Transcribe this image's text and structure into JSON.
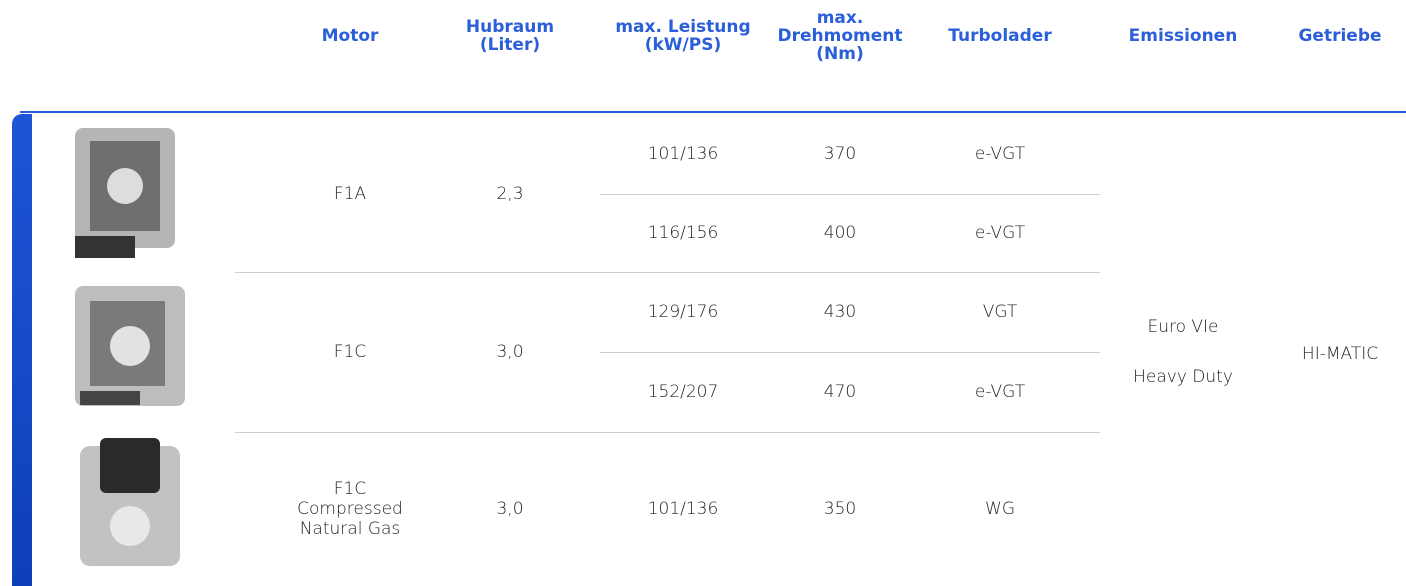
{
  "table": {
    "headers": [
      [
        "Motor"
      ],
      [
        "Hubraum",
        "(Liter)"
      ],
      [
        "max. Leistung",
        "(kW/PS)"
      ],
      [
        "max.",
        "Drehmoment",
        "(Nm)"
      ],
      [
        "Turbolader"
      ],
      [
        "Emissionen"
      ],
      [
        "Getriebe"
      ]
    ],
    "engines": [
      {
        "motor": [
          "F1A"
        ],
        "hubraum": "2,3",
        "variants": [
          {
            "leistung": "101/136",
            "drehmoment": 370,
            "turbolader": "e-VGT"
          },
          {
            "leistung": "116/156",
            "drehmoment": 400,
            "turbolader": "e-VGT"
          }
        ]
      },
      {
        "motor": [
          "F1C"
        ],
        "hubraum": "3,0",
        "variants": [
          {
            "leistung": "129/176",
            "drehmoment": 430,
            "turbolader": "VGT"
          },
          {
            "leistung": "152/207",
            "drehmoment": 470,
            "turbolader": "e-VGT"
          }
        ]
      },
      {
        "motor": [
          "F1C",
          "Compressed",
          "Natural Gas"
        ],
        "hubraum": "3,0",
        "variants": [
          {
            "leistung": "101/136",
            "drehmoment": 350,
            "turbolader": "WG"
          }
        ]
      }
    ],
    "emissionen": [
      "Euro VIe",
      "Heavy Duty"
    ],
    "getriebe": "HI-MATIC"
  }
}
